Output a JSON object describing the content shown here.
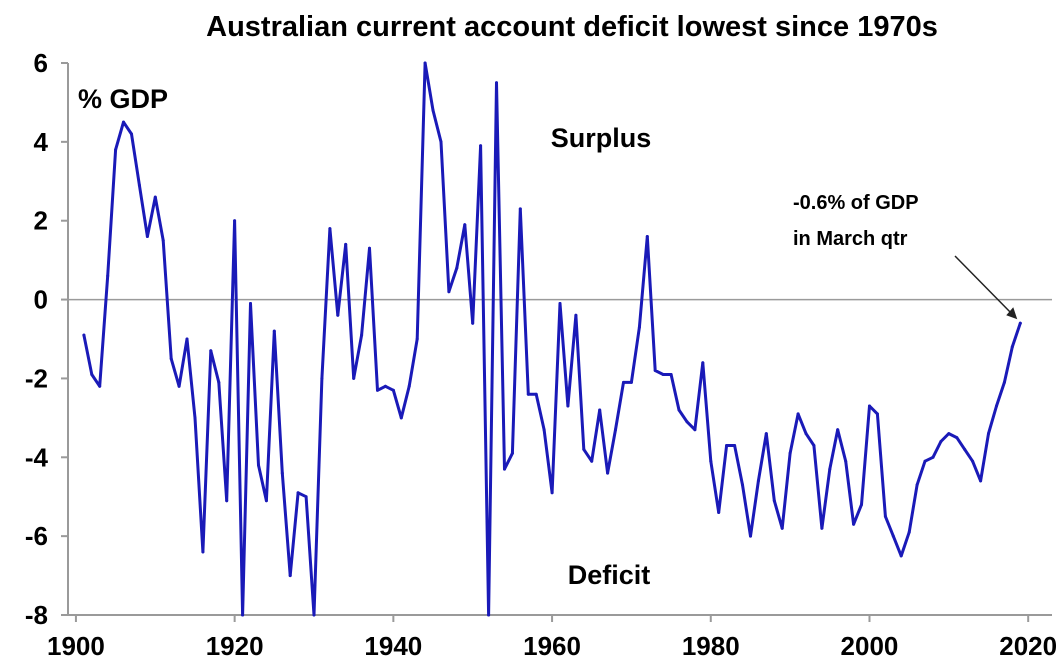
{
  "chart_data": {
    "type": "line",
    "title": "Australian current account deficit lowest since 1970s",
    "ylabel": "% GDP",
    "xlabel": "",
    "xlim": [
      1899,
      2023
    ],
    "ylim": [
      -8,
      6
    ],
    "x_ticks": [
      1900,
      1920,
      1940,
      1960,
      1980,
      2000,
      2020
    ],
    "x_tick_labels": [
      "1900",
      "1920",
      "1940",
      "1960",
      "1980",
      "2000",
      "2020"
    ],
    "y_ticks": [
      6,
      4,
      2,
      0,
      -2,
      -4,
      -6,
      -8
    ],
    "y_tick_labels": [
      "6",
      "4",
      "2",
      "0",
      "-2",
      "-4",
      "-6",
      "-8"
    ],
    "zero_line": true,
    "grid": false,
    "colors": {
      "series": "#1a1ab8",
      "axis": "#9a9a9a",
      "zero_line": "#9a9a9a",
      "text": "#000000"
    },
    "annotations": {
      "surplus": "Surplus",
      "deficit": "Deficit",
      "latest_line1": "-0.6% of GDP",
      "latest_line2": "in March qtr"
    },
    "series": [
      {
        "x": [
          1901,
          1902,
          1903,
          1904,
          1905,
          1906,
          1907,
          1908,
          1909,
          1910,
          1911,
          1912,
          1913,
          1914,
          1915,
          1916,
          1917,
          1918,
          1919,
          1920,
          1921,
          1922,
          1923,
          1924,
          1925,
          1926,
          1927,
          1928,
          1929,
          1930,
          1931,
          1932,
          1933,
          1934,
          1935,
          1936,
          1937,
          1938,
          1939,
          1940,
          1941,
          1942,
          1943,
          1944,
          1945,
          1946,
          1947,
          1948,
          1949,
          1950,
          1951,
          1952,
          1953,
          1954,
          1955,
          1956,
          1957,
          1958,
          1959,
          1960,
          1961,
          1962,
          1963,
          1964,
          1965,
          1966,
          1967,
          1968,
          1969,
          1970,
          1971,
          1972,
          1973,
          1974,
          1975,
          1976,
          1977,
          1978,
          1979,
          1980,
          1981,
          1982,
          1983,
          1984,
          1985,
          1986,
          1987,
          1988,
          1989,
          1990,
          1991,
          1992,
          1993,
          1994,
          1995,
          1996,
          1997,
          1998,
          1999,
          2000,
          2001,
          2002,
          2003,
          2004,
          2005,
          2006,
          2007,
          2008,
          2009,
          2010,
          2011,
          2012,
          2013,
          2014,
          2015,
          2016,
          2017,
          2018,
          2019
        ],
        "values": [
          -0.9,
          -1.9,
          -2.2,
          0.6,
          3.8,
          4.5,
          4.2,
          2.9,
          1.6,
          2.6,
          1.5,
          -1.5,
          -2.2,
          -1.0,
          -3.0,
          -6.4,
          -1.3,
          -2.1,
          -5.1,
          2.0,
          -8.0,
          -0.1,
          -4.2,
          -5.1,
          -0.8,
          -4.4,
          -7.0,
          -4.9,
          -5.0,
          -8.0,
          -2.0,
          1.8,
          -0.4,
          1.4,
          -2.0,
          -0.9,
          1.3,
          -2.3,
          -2.2,
          -2.3,
          -3.0,
          -2.2,
          -1.0,
          6.0,
          4.8,
          4.0,
          0.2,
          0.8,
          1.9,
          -0.6,
          3.9,
          -8.0,
          5.5,
          -4.3,
          -3.9,
          2.3,
          -2.4,
          -2.4,
          -3.3,
          -4.9,
          -0.1,
          -2.7,
          -0.4,
          -3.8,
          -4.1,
          -2.8,
          -4.4,
          -3.3,
          -2.1,
          -2.1,
          -0.7,
          1.6,
          -1.8,
          -1.9,
          -1.9,
          -2.8,
          -3.1,
          -3.3,
          -1.6,
          -4.1,
          -5.4,
          -3.7,
          -3.7,
          -4.7,
          -6.0,
          -4.6,
          -3.4,
          -5.1,
          -5.8,
          -3.9,
          -2.9,
          -3.4,
          -3.7,
          -5.8,
          -4.3,
          -3.3,
          -4.1,
          -5.7,
          -5.2,
          -2.7,
          -2.9,
          -5.5,
          -6.0,
          -6.5,
          -5.9,
          -4.7,
          -4.1,
          -4.0,
          -3.6,
          -3.4,
          -3.5,
          -3.8,
          -4.1,
          -4.6,
          -3.4,
          -2.7,
          -2.1,
          -1.2,
          -0.6
        ]
      }
    ]
  }
}
